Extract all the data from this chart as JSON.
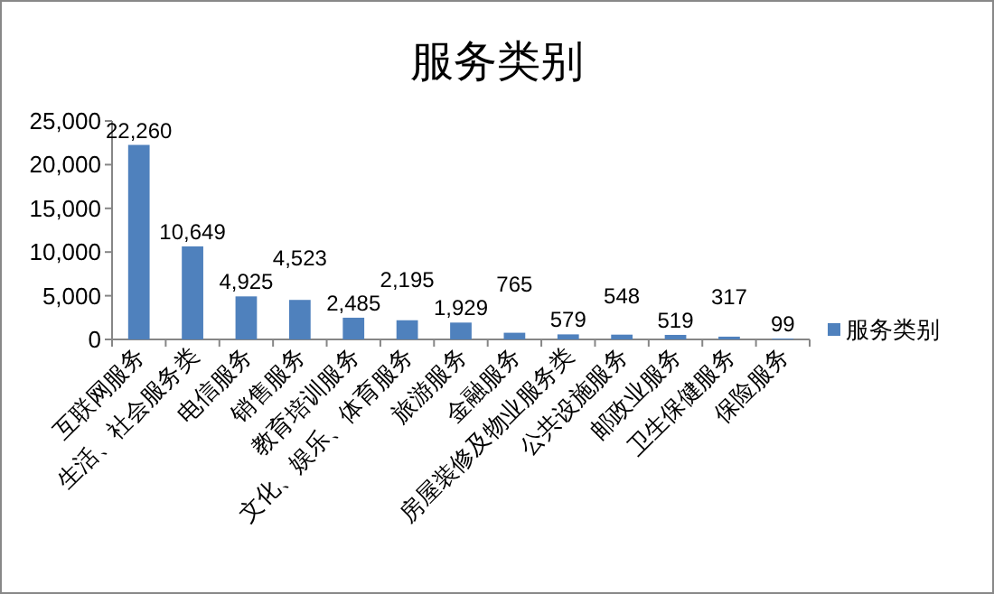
{
  "chart_data": {
    "type": "bar",
    "title": "服务类别",
    "categories": [
      "互联网服务",
      "生活、社会服务类",
      "电信服务",
      "销售服务",
      "教育培训服务",
      "文化、娱乐、体育服务",
      "旅游服务",
      "金融服务",
      "房屋装修及物业服务类",
      "公共设施服务",
      "邮政业服务",
      "卫生保健服务",
      "保险服务"
    ],
    "series": [
      {
        "name": "服务类别",
        "color": "#4f81bd",
        "values": [
          22260,
          10649,
          4925,
          4523,
          2485,
          2195,
          1929,
          765,
          579,
          548,
          519,
          317,
          99
        ],
        "value_labels": [
          "22,260",
          "10,649",
          "4,925",
          "4,523",
          "2,485",
          "2,195",
          "1,929",
          "765",
          "579",
          "548",
          "519",
          "317",
          "99"
        ]
      }
    ],
    "ylim": [
      0,
      25000
    ],
    "yticks": [
      0,
      {
        "value": 5000,
        "label": "5,000"
      },
      {
        "value": 10000,
        "label": "10,000"
      },
      {
        "value": 15000,
        "label": "15,000"
      },
      {
        "value": 20000,
        "label": "20,000"
      },
      {
        "value": 25000,
        "label": "25,000"
      }
    ],
    "legend": "right"
  }
}
